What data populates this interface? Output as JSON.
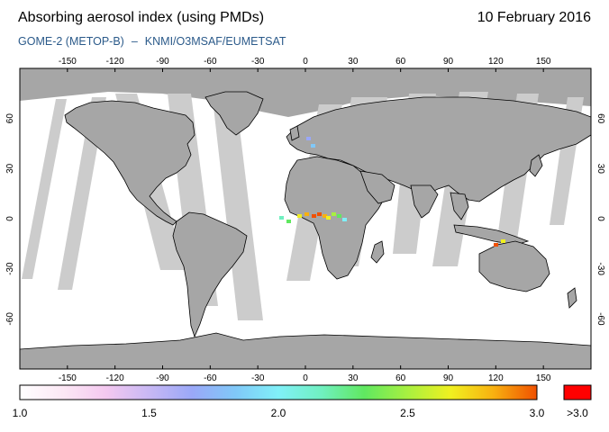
{
  "header": {
    "title": "Absorbing aerosol index (using PMDs)",
    "date": "10 February 2016",
    "instrument": "GOME-2 (METOP-B)",
    "separator": "–",
    "source": "KNMI/O3MSAF/EUMETSAT"
  },
  "map": {
    "lon_ticks": [
      "-150",
      "-120",
      "-90",
      "-60",
      "-30",
      "0",
      "30",
      "60",
      "90",
      "120",
      "150"
    ],
    "lat_ticks": [
      "60",
      "30",
      "0",
      "-30",
      "-60"
    ],
    "colors": {
      "land": "#a6a6a6",
      "ocean": "#ffffff",
      "swath_gap": "#cccccc",
      "night": "#a6a6a6",
      "coastline": "#000000"
    }
  },
  "colorbar": {
    "labels": [
      "1.0",
      "1.5",
      "2.0",
      "2.5",
      "3.0"
    ],
    "overflow_label": ">3.0",
    "overflow_color": "#ff0000",
    "gradient": [
      "#ffffff",
      "#fce8f5",
      "#f4c8f0",
      "#c8b8f4",
      "#9aa8f8",
      "#80c8f8",
      "#80f0f8",
      "#70f0c0",
      "#60e860",
      "#a8f040",
      "#f0f020",
      "#f8b010",
      "#f05000"
    ]
  }
}
